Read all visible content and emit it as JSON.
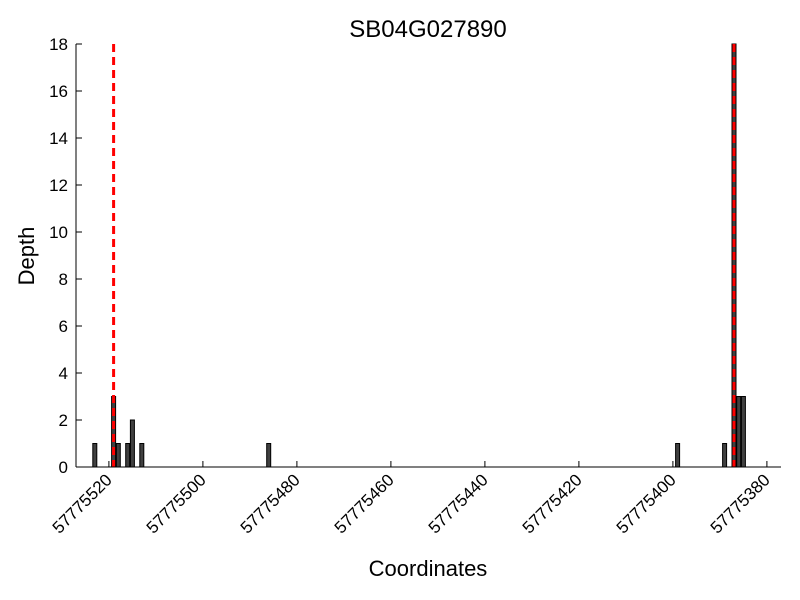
{
  "chart_data": {
    "type": "bar",
    "title": "SB04G027890",
    "xlabel": "Coordinates",
    "ylabel": "Depth",
    "xlim": [
      57775527,
      57775377
    ],
    "ylim": [
      0,
      18
    ],
    "x_reversed": true,
    "xticks": [
      57775520,
      57775500,
      57775480,
      57775460,
      57775440,
      57775420,
      57775400,
      57775380
    ],
    "xtick_labels": [
      "57775520",
      "57775500",
      "57775480",
      "57775460",
      "57775440",
      "57775420",
      "57775400",
      "57775380"
    ],
    "yticks": [
      0,
      2,
      4,
      6,
      8,
      10,
      12,
      14,
      16,
      18
    ],
    "ytick_labels": [
      "0",
      "2",
      "4",
      "6",
      "8",
      "10",
      "12",
      "14",
      "16",
      "18"
    ],
    "bars": [
      {
        "x": 57775523,
        "y": 1
      },
      {
        "x": 57775519,
        "y": 3
      },
      {
        "x": 57775518,
        "y": 1
      },
      {
        "x": 57775516,
        "y": 1
      },
      {
        "x": 57775515,
        "y": 2
      },
      {
        "x": 57775513,
        "y": 1
      },
      {
        "x": 57775486,
        "y": 1
      },
      {
        "x": 57775399,
        "y": 1
      },
      {
        "x": 57775389,
        "y": 1
      },
      {
        "x": 57775387,
        "y": 18
      },
      {
        "x": 57775386,
        "y": 3
      },
      {
        "x": 57775385,
        "y": 3
      }
    ],
    "vlines": [
      57775519,
      57775387
    ],
    "colors": {
      "bar_fill": "#404040",
      "bar_edge": "#000000",
      "vline": "#ff0000"
    },
    "grid": false
  }
}
